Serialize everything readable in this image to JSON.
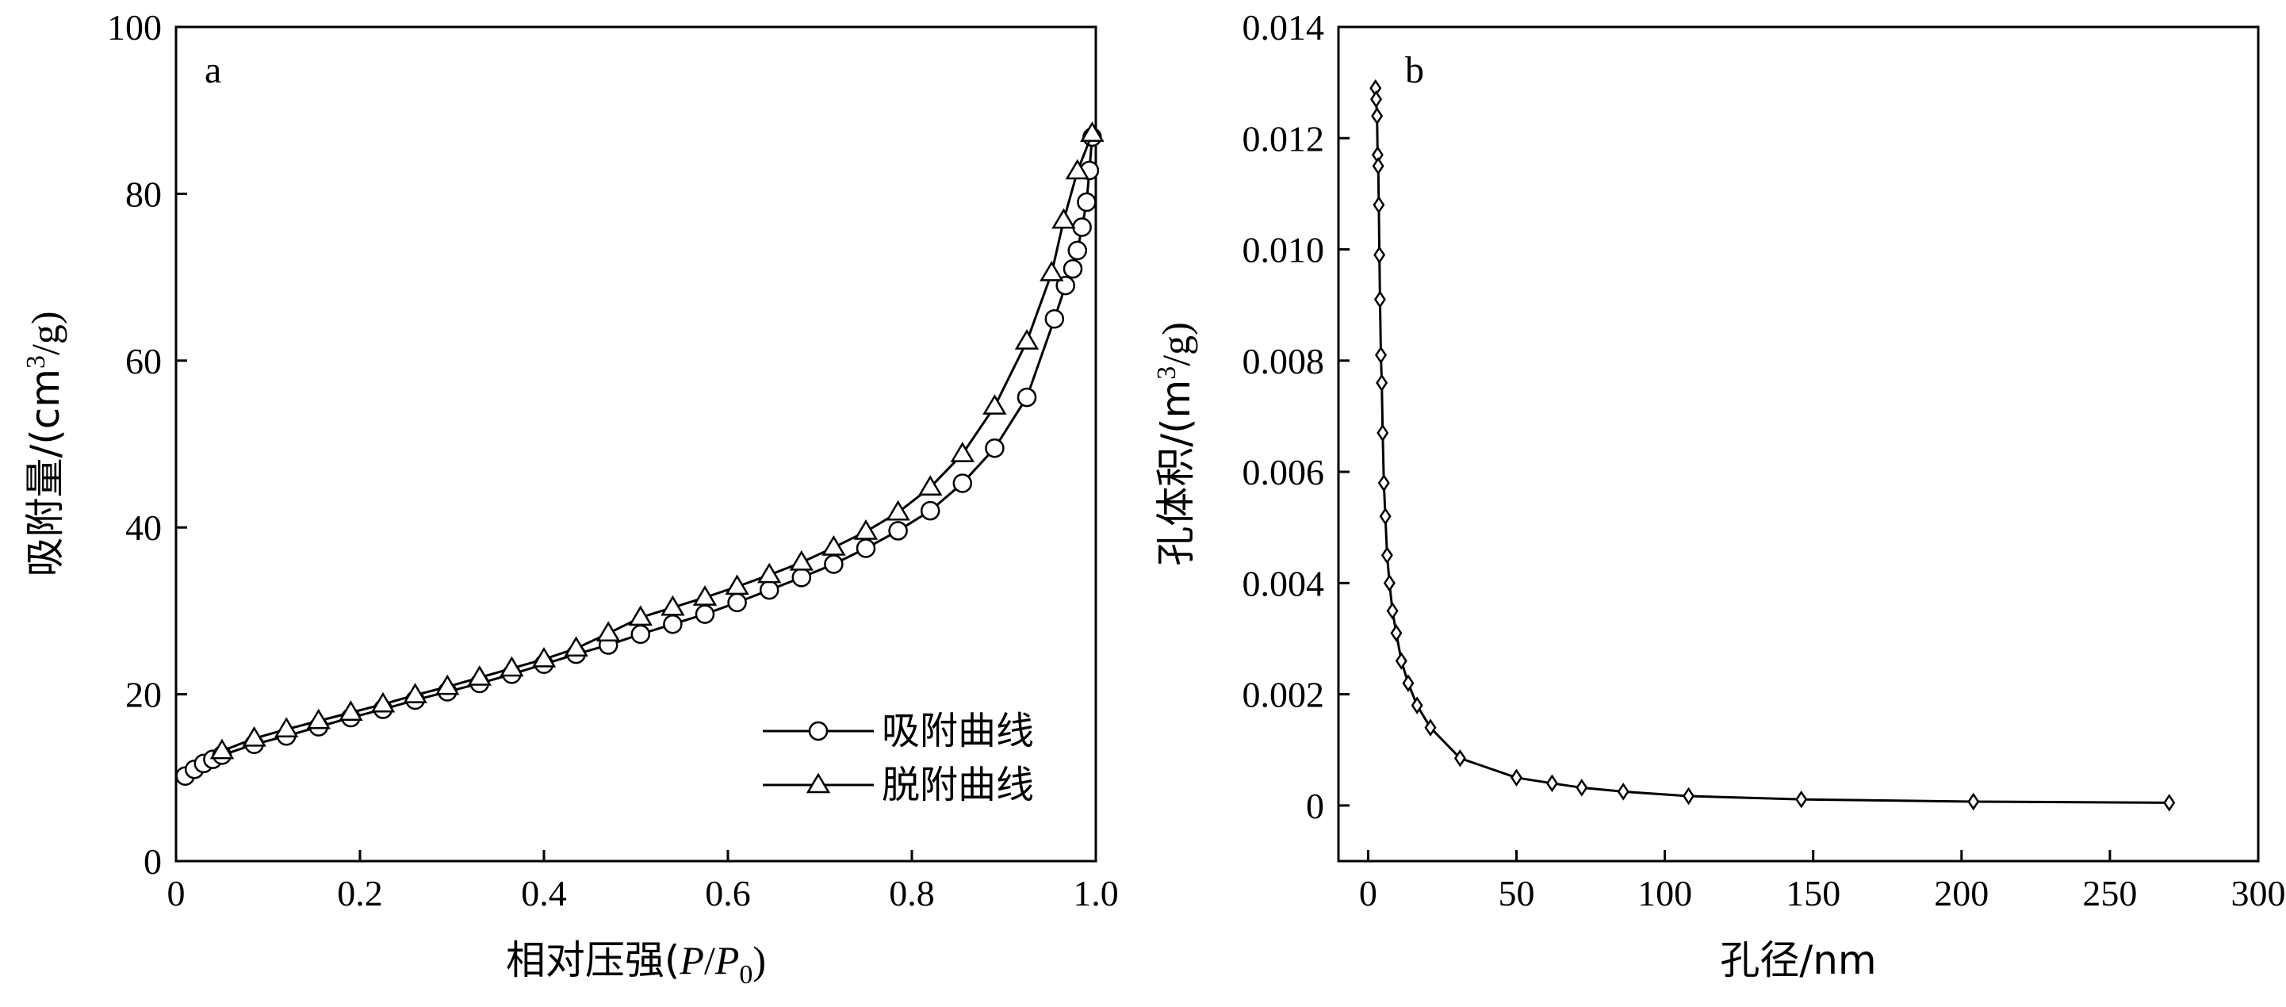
{
  "chart_data": [
    {
      "type": "line",
      "panel_label": "a",
      "xlabel": "相对压强(P/P0)",
      "xlabel_parts": {
        "prefix": "相对压强(",
        "p": "P",
        "slash": "/",
        "p0": "P",
        "sub": "0",
        "suffix": ")"
      },
      "ylabel": "吸附量/(cm3/g)",
      "ylabel_parts": {
        "prefix": "吸附量/(cm",
        "sup": "3",
        "suffix": "/g)"
      },
      "xlim": [
        0,
        1.0
      ],
      "ylim": [
        0,
        100
      ],
      "xticks": [
        "0",
        "0.2",
        "0.4",
        "0.6",
        "0.8",
        "1.0"
      ],
      "xtick_values": [
        0,
        0.2,
        0.4,
        0.6,
        0.8,
        1.0
      ],
      "yticks": [
        "0",
        "20",
        "40",
        "60",
        "80",
        "100"
      ],
      "ytick_values": [
        0,
        20,
        40,
        60,
        80,
        100
      ],
      "legend_position": "lower-right",
      "series": [
        {
          "name": "吸附曲线",
          "marker": "circle",
          "x": [
            0.01,
            0.02,
            0.03,
            0.04,
            0.05,
            0.085,
            0.12,
            0.155,
            0.19,
            0.225,
            0.26,
            0.295,
            0.33,
            0.365,
            0.4,
            0.435,
            0.47,
            0.505,
            0.54,
            0.575,
            0.61,
            0.645,
            0.68,
            0.715,
            0.75,
            0.785,
            0.82,
            0.855,
            0.89,
            0.925,
            0.955,
            0.967,
            0.975,
            0.98,
            0.985,
            0.99,
            0.993,
            0.996
          ],
          "y": [
            10.2,
            11.0,
            11.7,
            12.2,
            12.7,
            14.0,
            15.0,
            16.1,
            17.2,
            18.2,
            19.3,
            20.3,
            21.3,
            22.4,
            23.6,
            24.8,
            25.9,
            27.2,
            28.4,
            29.6,
            31.0,
            32.5,
            34.0,
            35.6,
            37.5,
            39.6,
            42.0,
            45.3,
            49.5,
            55.6,
            65.0,
            69.0,
            71.0,
            73.2,
            76.0,
            79.0,
            82.8,
            86.8
          ]
        },
        {
          "name": "脱附曲线",
          "marker": "triangle",
          "x": [
            0.05,
            0.085,
            0.12,
            0.155,
            0.19,
            0.225,
            0.26,
            0.295,
            0.33,
            0.365,
            0.4,
            0.435,
            0.47,
            0.505,
            0.54,
            0.575,
            0.61,
            0.645,
            0.68,
            0.715,
            0.75,
            0.785,
            0.82,
            0.855,
            0.89,
            0.925,
            0.952,
            0.965,
            0.98,
            0.996
          ],
          "y": [
            13.2,
            14.7,
            15.8,
            16.8,
            17.8,
            18.8,
            19.9,
            20.9,
            22.0,
            23.1,
            24.2,
            25.5,
            27.3,
            29.2,
            30.4,
            31.6,
            32.9,
            34.3,
            35.8,
            37.6,
            39.5,
            41.8,
            44.8,
            48.8,
            54.5,
            62.3,
            70.5,
            76.8,
            82.7,
            87.2
          ]
        }
      ]
    },
    {
      "type": "line",
      "panel_label": "b",
      "xlabel": "孔径/nm",
      "ylabel": "孔体积/(m3/g)",
      "ylabel_parts": {
        "prefix": "孔体积/(m",
        "sup": "3",
        "suffix": "/g)"
      },
      "xlim": [
        -10,
        300
      ],
      "ylim": [
        -0.001,
        0.014
      ],
      "xticks": [
        "0",
        "50",
        "100",
        "150",
        "200",
        "250",
        "300"
      ],
      "xtick_values": [
        0,
        50,
        100,
        150,
        200,
        250,
        300
      ],
      "yticks": [
        "0",
        "0.002",
        "0.004",
        "0.006",
        "0.008",
        "0.010",
        "0.012",
        "0.014"
      ],
      "ytick_values": [
        0,
        0.002,
        0.004,
        0.006,
        0.008,
        0.01,
        0.012,
        0.014
      ],
      "series": [
        {
          "marker": "diamond",
          "x": [
            2.5,
            2.7,
            3.0,
            3.2,
            3.4,
            3.6,
            3.8,
            4.0,
            4.3,
            4.6,
            4.9,
            5.3,
            5.8,
            6.4,
            7.2,
            8.2,
            9.5,
            11.2,
            13.5,
            16.5,
            21,
            31,
            50,
            62,
            72,
            86,
            108,
            146,
            204,
            270
          ],
          "y": [
            0.0129,
            0.0127,
            0.0124,
            0.0117,
            0.0115,
            0.0108,
            0.0099,
            0.0091,
            0.0081,
            0.0076,
            0.0067,
            0.0058,
            0.0052,
            0.0045,
            0.004,
            0.0035,
            0.0031,
            0.0026,
            0.0022,
            0.0018,
            0.0014,
            0.00085,
            0.0005,
            0.0004,
            0.00032,
            0.00025,
            0.00017,
            0.00011,
            7e-05,
            5e-05
          ]
        }
      ]
    }
  ]
}
